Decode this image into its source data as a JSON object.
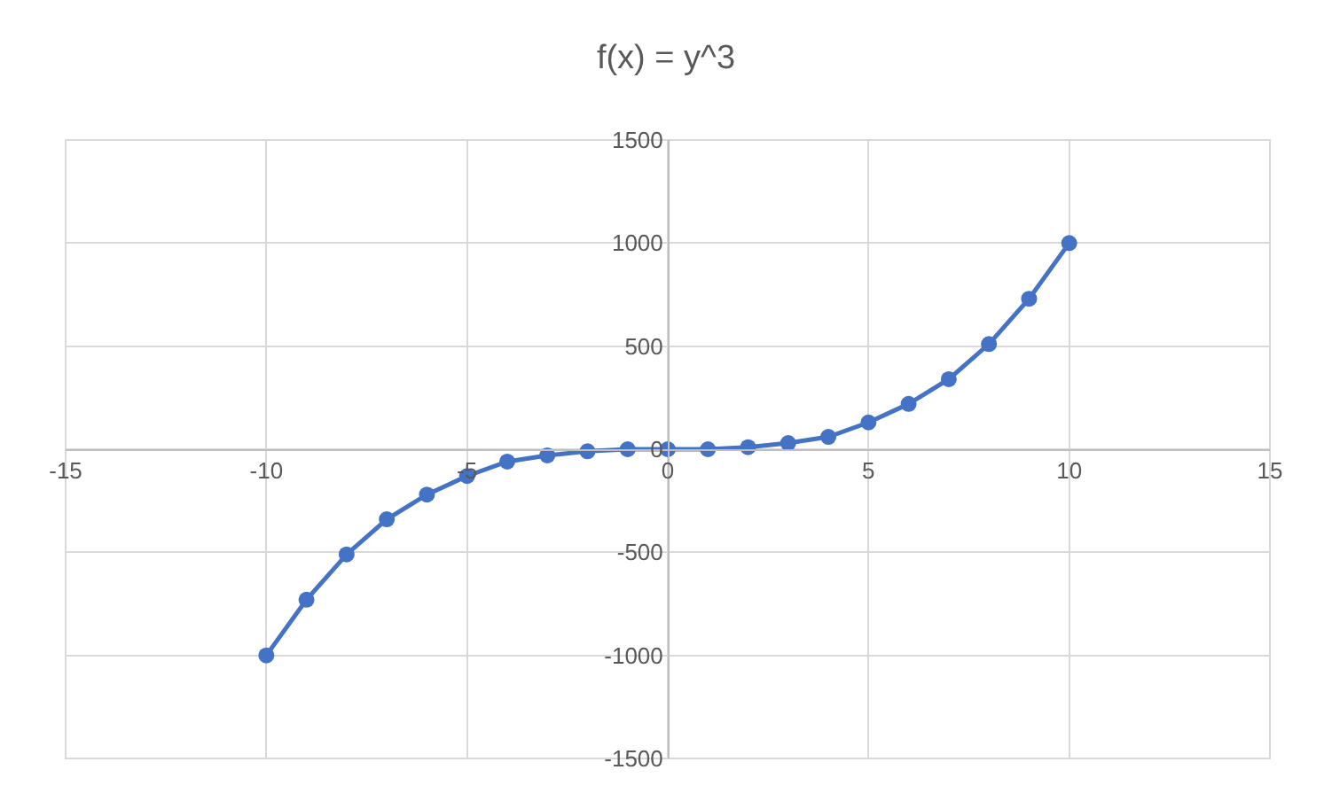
{
  "chart_data": {
    "type": "line",
    "title": "f(x) = y^3",
    "x": [
      -10,
      -9,
      -8,
      -7,
      -6,
      -5,
      -4,
      -3,
      -2,
      -1,
      0,
      1,
      2,
      3,
      4,
      5,
      6,
      7,
      8,
      9,
      10
    ],
    "series": [
      {
        "color": "#4472c4",
        "values": [
          -1000,
          -730,
          -510,
          -340,
          -220,
          -130,
          -60,
          -30,
          -10,
          0,
          0,
          0,
          10,
          30,
          60,
          130,
          220,
          340,
          510,
          730,
          1000
        ]
      }
    ],
    "xlim": [
      -15,
      15
    ],
    "xticks": [
      -15,
      -10,
      -5,
      0,
      5,
      10,
      15
    ],
    "ylim": [
      -1500,
      1500
    ],
    "yticks": [
      -1500,
      -1000,
      -500,
      0,
      500,
      1000,
      1500
    ],
    "grid": true,
    "marker": "circle",
    "line_style": "solid"
  }
}
